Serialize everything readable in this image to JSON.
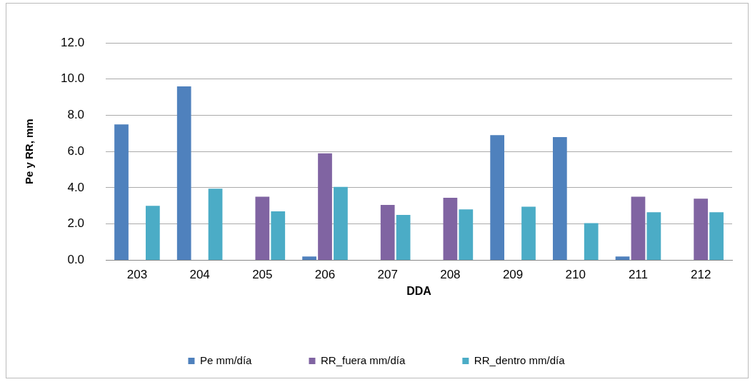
{
  "chart_data": {
    "type": "bar",
    "xlabel": "DDA",
    "ylabel": "Pe y RR, mm",
    "categories": [
      "203",
      "204",
      "205",
      "206",
      "207",
      "208",
      "209",
      "210",
      "211",
      "212"
    ],
    "series": [
      {
        "name": "Pe mm/día",
        "color": "#4f81bd",
        "values": [
          7.5,
          9.6,
          0,
          0.2,
          0,
          0,
          6.9,
          6.8,
          0.2,
          0
        ]
      },
      {
        "name": "RR_fuera mm/día",
        "color": "#8064a2",
        "values": [
          0,
          0,
          3.5,
          5.9,
          3.05,
          3.45,
          0,
          0,
          3.5,
          3.4
        ]
      },
      {
        "name": "RR_dentro mm/día",
        "color": "#4bacc6",
        "values": [
          3.0,
          3.95,
          2.7,
          4.05,
          2.5,
          2.8,
          2.95,
          2.05,
          2.65,
          2.65
        ]
      }
    ],
    "ylim": [
      0,
      12
    ],
    "yticks": [
      {
        "value": 0,
        "label": "0.0"
      },
      {
        "value": 2,
        "label": "2.0"
      },
      {
        "value": 4,
        "label": "4.0"
      },
      {
        "value": 6,
        "label": "6.0"
      },
      {
        "value": 8,
        "label": "8.0"
      },
      {
        "value": 10,
        "label": "10.0"
      },
      {
        "value": 12,
        "label": "12.0"
      }
    ],
    "grid": "y",
    "legend": "bottom"
  }
}
